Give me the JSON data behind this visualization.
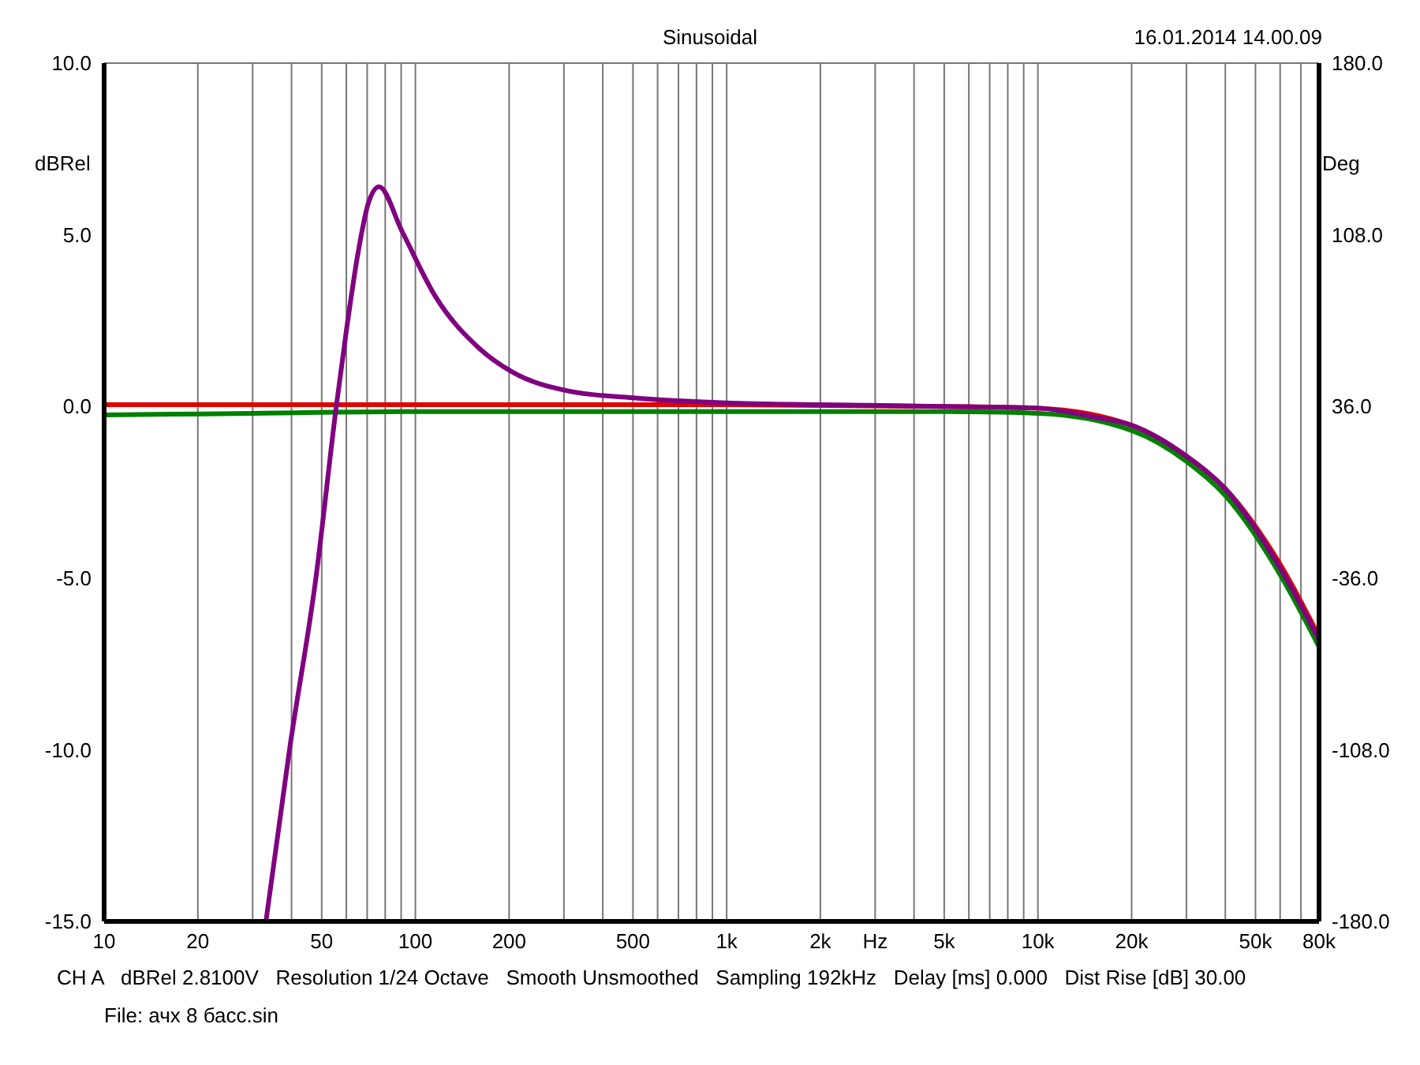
{
  "chart_data": {
    "type": "line",
    "title": "Sinusoidal",
    "ylabel": "dBRel",
    "y2label": "Deg",
    "annotations": [
      "16.01.2014 14.00.09",
      "CH A   dBRel 2.8100V   Resolution 1/24 Octave   Smooth Unsmoothed   Sampling 192kHz   Delay [ms] 0.000   Dist Rise [dB] 30.00",
      "File: ачх 8 басс.sin"
    ],
    "log": "x",
    "grid": true,
    "xlim": [
      10,
      80000
    ],
    "xticks": [
      10,
      20,
      {
        "value": 30,
        "label": null
      },
      {
        "value": 40,
        "label": null
      },
      50,
      {
        "value": 60,
        "label": null
      },
      {
        "value": 70,
        "label": null
      },
      {
        "value": 80,
        "label": null
      },
      {
        "value": 90,
        "label": null
      },
      100,
      200,
      {
        "value": 300,
        "label": null
      },
      {
        "value": 400,
        "label": null
      },
      500,
      {
        "value": 600,
        "label": null
      },
      {
        "value": 700,
        "label": null
      },
      {
        "value": 800,
        "label": null
      },
      {
        "value": 900,
        "label": null
      },
      {
        "value": 1000,
        "label": "1k"
      },
      {
        "value": 2000,
        "label": "2k"
      },
      {
        "value": 3000,
        "label": "Hz"
      },
      {
        "value": 4000,
        "label": null
      },
      {
        "value": 5000,
        "label": "5k"
      },
      {
        "value": 6000,
        "label": null
      },
      {
        "value": 7000,
        "label": null
      },
      {
        "value": 8000,
        "label": null
      },
      {
        "value": 9000,
        "label": null
      },
      {
        "value": 10000,
        "label": "10k"
      },
      {
        "value": 20000,
        "label": "20k"
      },
      {
        "value": 30000,
        "label": null
      },
      {
        "value": 40000,
        "label": null
      },
      {
        "value": 50000,
        "label": "50k"
      },
      {
        "value": 60000,
        "label": null
      },
      {
        "value": 70000,
        "label": null
      },
      {
        "value": 80000,
        "label": "80k"
      }
    ],
    "ylim": [
      -15,
      10
    ],
    "yticks": [
      {
        "value": -15,
        "label": "-15.0"
      },
      {
        "value": -10,
        "label": "-10.0"
      },
      {
        "value": -5,
        "label": "-5.0"
      },
      {
        "value": 0,
        "label": "0.0"
      },
      {
        "value": 5,
        "label": "5.0"
      },
      {
        "value": 10,
        "label": "10.0"
      }
    ],
    "y2lim": [
      -180,
      180
    ],
    "y2ticks": [
      {
        "value": -180,
        "label": "-180.0"
      },
      {
        "value": -108,
        "label": "-108.0"
      },
      {
        "value": -36,
        "label": "-36.0"
      },
      {
        "value": 36,
        "label": "36.0"
      },
      {
        "value": 108,
        "label": "108.0"
      },
      {
        "value": 180,
        "label": "180.0"
      }
    ],
    "series": [
      {
        "color": "#e00000",
        "x": [
          10,
          100,
          1000,
          5000,
          10000,
          20000,
          30000,
          40000,
          60000,
          80000
        ],
        "values": [
          0.05,
          0.05,
          0.05,
          0.0,
          -0.05,
          -0.55,
          -1.45,
          -2.4,
          -4.6,
          -6.7
        ]
      },
      {
        "color": "#008000",
        "x": [
          10,
          30,
          100,
          1000,
          5000,
          10000,
          20000,
          30000,
          40000,
          60000,
          80000
        ],
        "values": [
          -0.25,
          -0.2,
          -0.15,
          -0.15,
          -0.15,
          -0.2,
          -0.7,
          -1.6,
          -2.6,
          -4.9,
          -7.0
        ]
      },
      {
        "color": "#800080",
        "x": [
          33.1,
          39.4,
          47.9,
          55.7,
          60,
          65.5,
          70.5,
          76.4,
          90.6,
          116,
          160,
          205,
          310,
          500,
          1000,
          2000,
          5000,
          10000,
          15000,
          20000,
          30000,
          40000,
          60000,
          80000
        ],
        "values": [
          -15,
          -10,
          -5,
          0,
          2.2,
          4.5,
          5.9,
          6.4,
          5.1,
          3.2,
          1.7,
          1.0,
          0.45,
          0.25,
          0.1,
          0.05,
          0.0,
          -0.05,
          -0.3,
          -0.55,
          -1.45,
          -2.4,
          -4.7,
          -6.8
        ]
      }
    ]
  }
}
